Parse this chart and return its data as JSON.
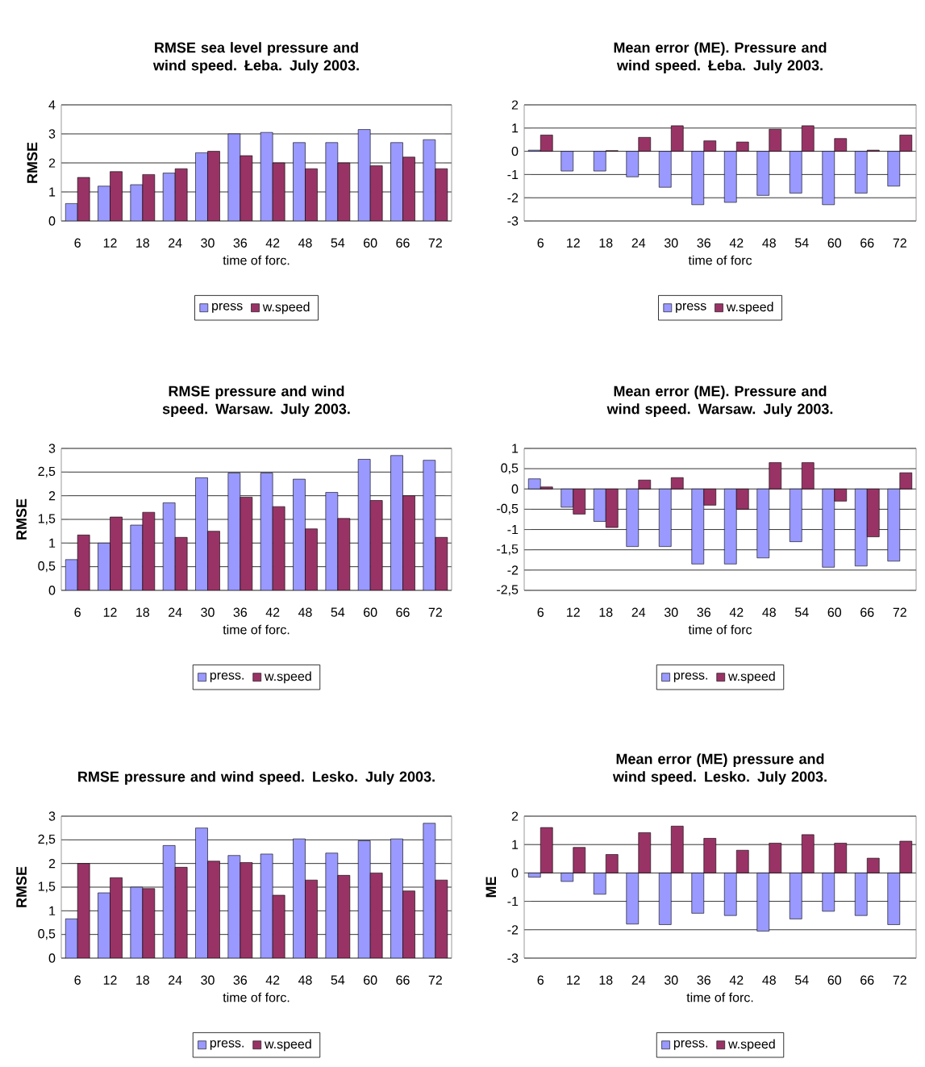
{
  "chart_data": [
    {
      "type": "bar",
      "title": "RMSE sea level pressure and wind speed. Łeba. July 2003.",
      "xlabel": "time of forc.",
      "ylabel": "RMSE",
      "categories": [
        "6",
        "12",
        "18",
        "24",
        "30",
        "36",
        "42",
        "48",
        "54",
        "60",
        "66",
        "72"
      ],
      "ylim": [
        0,
        4
      ],
      "yticks": [
        0,
        1,
        2,
        3,
        4
      ],
      "grid": "y",
      "legend": "bottom",
      "series": [
        {
          "name": "press",
          "color": "#9999ff",
          "values": [
            0.6,
            1.2,
            1.25,
            1.65,
            2.35,
            3.0,
            3.05,
            2.7,
            2.7,
            3.15,
            2.7,
            2.8
          ]
        },
        {
          "name": "w.speed",
          "color": "#993366",
          "values": [
            1.5,
            1.7,
            1.6,
            1.8,
            2.4,
            2.25,
            2.0,
            1.8,
            2.0,
            1.9,
            2.2,
            1.8
          ]
        }
      ]
    },
    {
      "type": "bar",
      "title": "Mean error (ME). Pressure and wind speed. Łeba. July 2003.",
      "xlabel": "time of forc",
      "categories": [
        "6",
        "12",
        "18",
        "24",
        "30",
        "36",
        "42",
        "48",
        "54",
        "60",
        "66",
        "72"
      ],
      "ylim": [
        -3,
        2
      ],
      "yticks": [
        -3,
        -2,
        -1,
        0,
        1,
        2
      ],
      "grid": "y",
      "legend": "bottom",
      "series": [
        {
          "name": "press",
          "color": "#9999ff",
          "values": [
            0.05,
            -0.85,
            -0.85,
            -1.1,
            -1.55,
            -2.3,
            -2.2,
            -1.9,
            -1.8,
            -2.3,
            -1.8,
            -1.5
          ]
        },
        {
          "name": "w.speed",
          "color": "#993366",
          "values": [
            0.7,
            null,
            0.03,
            0.6,
            1.1,
            0.45,
            0.4,
            0.95,
            1.1,
            0.55,
            0.05,
            0.7
          ]
        }
      ]
    },
    {
      "type": "bar",
      "title": "RMSE pressure and wind speed. Warsaw. July 2003.",
      "xlabel": "time of forc.",
      "ylabel": "RMSE",
      "categories": [
        "6",
        "12",
        "18",
        "24",
        "30",
        "36",
        "42",
        "48",
        "54",
        "60",
        "66",
        "72"
      ],
      "ylim": [
        0,
        3
      ],
      "yticks": [
        0,
        {
          "value": 0.5,
          "label": "0,5"
        },
        1,
        {
          "value": 1.5,
          "label": "1,5"
        },
        2,
        {
          "value": 2.5,
          "label": "2,5"
        },
        3
      ],
      "grid": "y",
      "legend": "bottom",
      "series": [
        {
          "name": "press.",
          "color": "#9999ff",
          "values": [
            0.65,
            1.0,
            1.38,
            1.85,
            2.38,
            2.48,
            2.48,
            2.35,
            2.07,
            2.77,
            2.85,
            2.75
          ]
        },
        {
          "name": "w.speed",
          "color": "#993366",
          "values": [
            1.17,
            1.55,
            1.65,
            1.12,
            1.25,
            1.97,
            1.77,
            1.3,
            1.52,
            1.9,
            2.0,
            1.12
          ]
        }
      ]
    },
    {
      "type": "bar",
      "title": "Mean error (ME). Pressure and wind speed. Warsaw. July 2003.",
      "xlabel": "time of forc",
      "categories": [
        "6",
        "12",
        "18",
        "24",
        "30",
        "36",
        "42",
        "48",
        "54",
        "60",
        "66",
        "72"
      ],
      "ylim": [
        -2.5,
        1
      ],
      "yticks": [
        {
          "value": -2.5,
          "label": "-2,5"
        },
        -2,
        {
          "value": -1.5,
          "label": "-1,5"
        },
        -1,
        {
          "value": -0.5,
          "label": "-0,5"
        },
        0,
        {
          "value": 0.5,
          "label": "0,5"
        },
        1
      ],
      "grid": "y",
      "legend": "bottom",
      "series": [
        {
          "name": "press.",
          "color": "#9999ff",
          "values": [
            0.25,
            -0.45,
            -0.8,
            -1.42,
            -1.42,
            -1.85,
            -1.85,
            -1.7,
            -1.3,
            -1.93,
            -1.9,
            -1.78
          ]
        },
        {
          "name": "w.speed",
          "color": "#993366",
          "values": [
            0.05,
            -0.62,
            -0.95,
            0.22,
            0.28,
            -0.4,
            -0.5,
            0.65,
            0.65,
            -0.3,
            -1.18,
            0.4
          ]
        }
      ]
    },
    {
      "type": "bar",
      "title": "RMSE pressure and wind speed. Lesko. July 2003.",
      "xlabel": "time of forc.",
      "ylabel": "RMSE",
      "categories": [
        "6",
        "12",
        "18",
        "24",
        "30",
        "36",
        "42",
        "48",
        "54",
        "60",
        "66",
        "72"
      ],
      "ylim": [
        0,
        3
      ],
      "yticks": [
        0,
        {
          "value": 0.5,
          "label": "0,5"
        },
        1,
        {
          "value": 1.5,
          "label": "1,5"
        },
        2,
        {
          "value": 2.5,
          "label": "2,5"
        },
        3
      ],
      "grid": "y",
      "legend": "bottom",
      "series": [
        {
          "name": "press.",
          "color": "#9999ff",
          "values": [
            0.83,
            1.38,
            1.5,
            2.38,
            2.75,
            2.17,
            2.2,
            2.52,
            2.22,
            2.48,
            2.52,
            2.85
          ]
        },
        {
          "name": "w.speed",
          "color": "#993366",
          "values": [
            2.0,
            1.7,
            1.47,
            1.92,
            2.05,
            2.02,
            1.33,
            1.65,
            1.75,
            1.8,
            1.42,
            1.65
          ]
        }
      ]
    },
    {
      "type": "bar",
      "title": "Mean error (ME) pressure and wind speed. Lesko. July 2003.",
      "xlabel": "time of forc.",
      "ylabel": "ME",
      "categories": [
        "6",
        "12",
        "18",
        "24",
        "30",
        "36",
        "42",
        "48",
        "54",
        "60",
        "66",
        "72"
      ],
      "ylim": [
        -3,
        2
      ],
      "yticks": [
        -3,
        -2,
        -1,
        0,
        1,
        2
      ],
      "grid": "y",
      "legend": "bottom",
      "series": [
        {
          "name": "press.",
          "color": "#9999ff",
          "values": [
            -0.15,
            -0.3,
            -0.75,
            -1.8,
            -1.82,
            -1.42,
            -1.5,
            -2.05,
            -1.62,
            -1.35,
            -1.5,
            -1.82
          ]
        },
        {
          "name": "w.speed",
          "color": "#993366",
          "values": [
            1.6,
            0.9,
            0.65,
            1.42,
            1.65,
            1.22,
            0.8,
            1.05,
            1.35,
            1.05,
            0.52,
            1.12
          ]
        }
      ]
    }
  ]
}
